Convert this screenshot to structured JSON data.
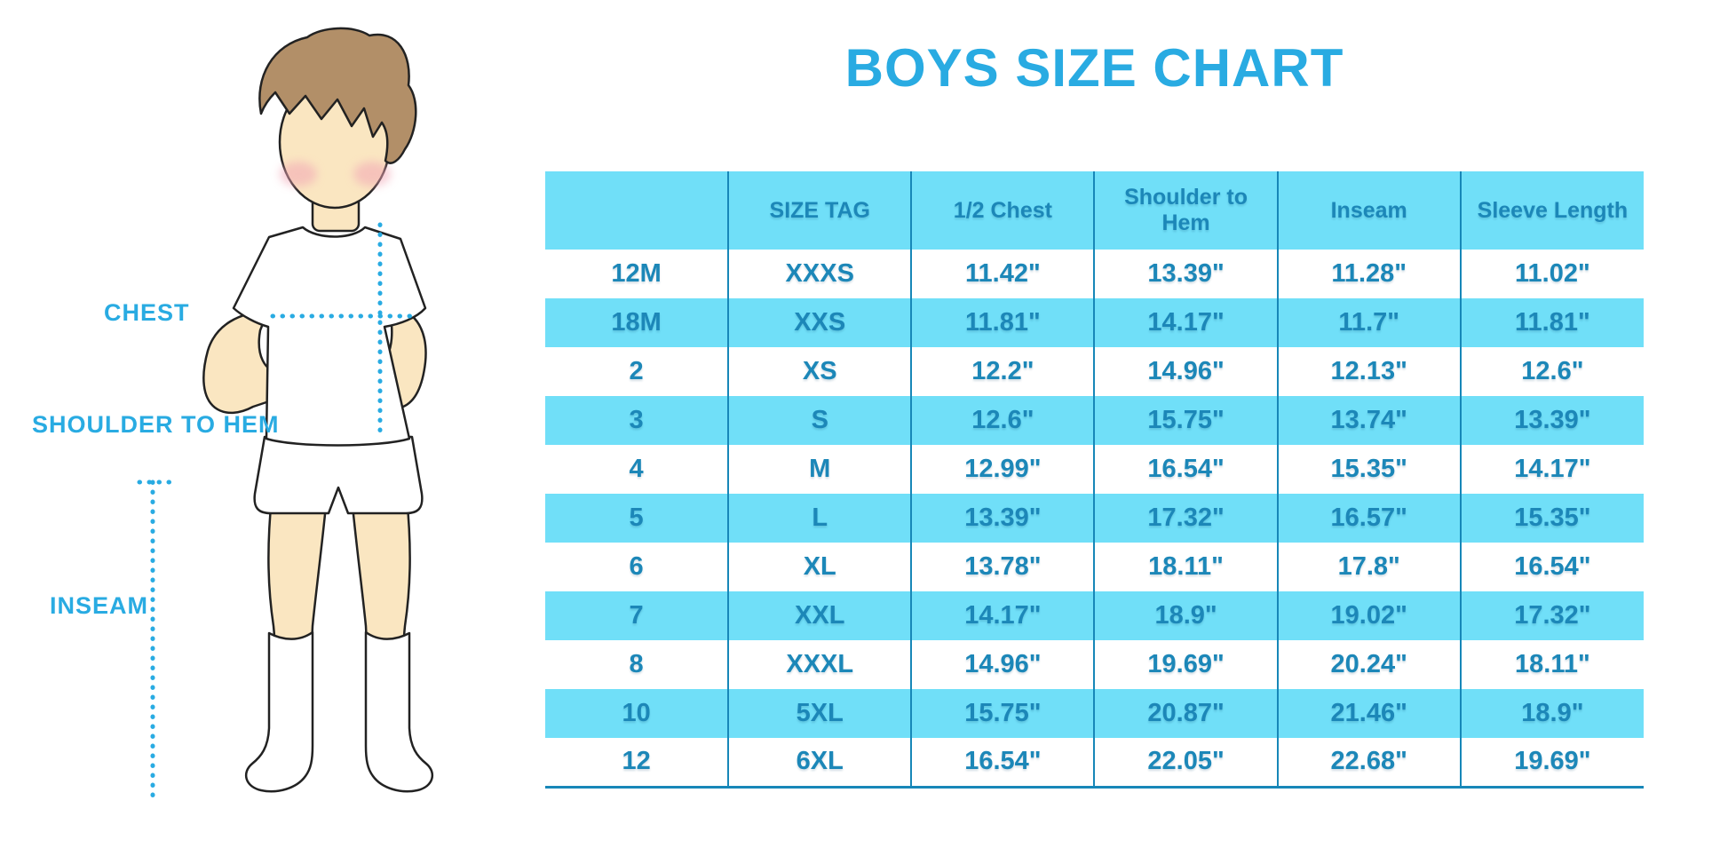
{
  "page_title": "BOYS SIZE CHART",
  "illustration": {
    "figure": "cartoon boy wearing white t-shirt, shorts and knee socks with dotted measurement guides",
    "labels": {
      "chest": "CHEST",
      "shoulder_to_hem": "SHOULDER TO HEM",
      "inseam": "INSEAM"
    }
  },
  "colors": {
    "title_blue": "#29ABE2",
    "row_highlight": "#70DFF8",
    "table_text": "#1C87B8",
    "grid_line": "#1787B8",
    "skin": "#FAE6C1",
    "hair": "#B28F68",
    "blush": "#F2A6B5",
    "outline": "#222222"
  },
  "chart_data": {
    "type": "table",
    "title": "BOYS SIZE CHART",
    "columns": [
      "",
      "SIZE TAG",
      "1/2 Chest",
      "Shoulder to Hem",
      "Inseam",
      "Sleeve Length"
    ],
    "rows": [
      [
        "12M",
        "XXXS",
        "11.42\"",
        "13.39\"",
        "11.28\"",
        "11.02\""
      ],
      [
        "18M",
        "XXS",
        "11.81\"",
        "14.17\"",
        "11.7\"",
        "11.81\""
      ],
      [
        "2",
        "XS",
        "12.2\"",
        "14.96\"",
        "12.13\"",
        "12.6\""
      ],
      [
        "3",
        "S",
        "12.6\"",
        "15.75\"",
        "13.74\"",
        "13.39\""
      ],
      [
        "4",
        "M",
        "12.99\"",
        "16.54\"",
        "15.35\"",
        "14.17\""
      ],
      [
        "5",
        "L",
        "13.39\"",
        "17.32\"",
        "16.57\"",
        "15.35\""
      ],
      [
        "6",
        "XL",
        "13.78\"",
        "18.11\"",
        "17.8\"",
        "16.54\""
      ],
      [
        "7",
        "XXL",
        "14.17\"",
        "18.9\"",
        "19.02\"",
        "17.32\""
      ],
      [
        "8",
        "XXXL",
        "14.96\"",
        "19.69\"",
        "20.24\"",
        "18.11\""
      ],
      [
        "10",
        "5XL",
        "15.75\"",
        "20.87\"",
        "21.46\"",
        "18.9\""
      ],
      [
        "12",
        "6XL",
        "16.54\"",
        "22.05\"",
        "22.68\"",
        "19.69\""
      ]
    ]
  }
}
